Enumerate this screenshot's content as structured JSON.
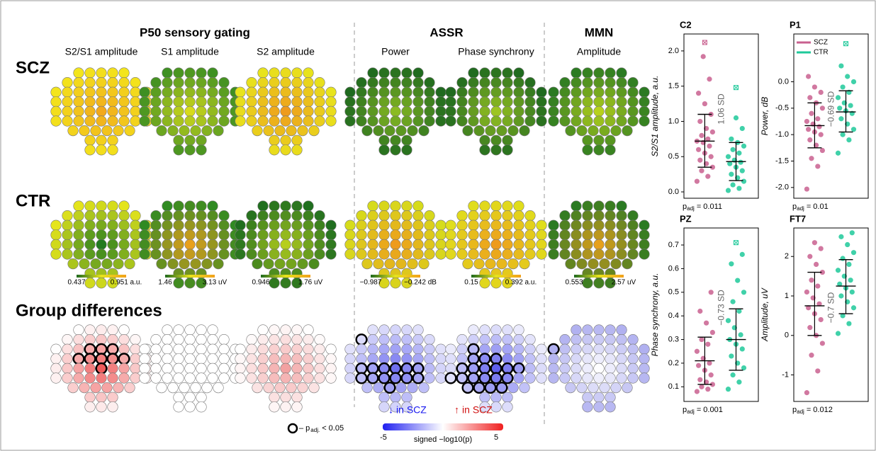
{
  "figure": {
    "sections": [
      {
        "title": "P50 sensory gating",
        "maps": [
          {
            "title": "S2/S1 amplitude",
            "scz": {
              "center": "#f2a81c",
              "edge": "#f3e51c"
            },
            "ctr": {
              "center": "#1f7a1f",
              "edge": "#e6e51c"
            },
            "diff": {
              "center": "#ee5a5a",
              "edge": "#ffffff",
              "significant": [
                15,
                16,
                17,
                23,
                24,
                25,
                26,
                27,
                34
              ]
            },
            "colorbar": [
              "0.437",
              "0.951 a.u."
            ]
          },
          {
            "title": "S1 amplitude",
            "scz": {
              "center": "#d8dc1c",
              "edge": "#3d8f22"
            },
            "ctr": {
              "center": "#eaa01c",
              "edge": "#2f8a22"
            },
            "diff": {
              "center": "#ffffff",
              "edge": "#ffffff",
              "significant": []
            },
            "colorbar": [
              "1.46",
              "3.13 uV"
            ]
          },
          {
            "title": "S2 amplitude",
            "scz": {
              "center": "#ee9a1c",
              "edge": "#e8e41c"
            },
            "ctr": {
              "center": "#b7cf1c",
              "edge": "#1f6e1f"
            },
            "diff": {
              "center": "#f2a0a0",
              "edge": "#ffffff",
              "significant": []
            },
            "colorbar": [
              "0.946",
              "1.76 uV"
            ]
          }
        ]
      },
      {
        "title": "ASSR",
        "maps": [
          {
            "title": "Power",
            "scz": {
              "center": "#8cbc22",
              "edge": "#1f6a1f"
            },
            "ctr": {
              "center": "#ee9a1c",
              "edge": "#d6dc1c"
            },
            "diff": {
              "center": "#6e6ef0",
              "edge": "#e2e2fb",
              "significant": [
                5,
                31,
                32,
                33,
                34,
                35,
                36,
                40,
                41,
                42,
                43,
                44,
                45,
                50
              ]
            },
            "colorbar": [
              "−0.987",
              "−0.242 dB"
            ]
          },
          {
            "title": "Phase synchrony",
            "scz": {
              "center": "#9ec622",
              "edge": "#1f6a1f"
            },
            "ctr": {
              "center": "#ee9a1c",
              "edge": "#e0de1c"
            },
            "diff": {
              "center": "#5e5eee",
              "edge": "#ececfc",
              "significant": [
                14,
                23,
                24,
                25,
                31,
                32,
                33,
                34,
                35,
                36,
                39,
                40,
                41,
                42,
                43,
                44,
                48,
                49,
                50,
                51
              ]
            },
            "colorbar": [
              "0.15",
              "0.392 a.u."
            ]
          },
          {
            "title": "Amplitude",
            "scz": {
              "center": "#b8d21c",
              "edge": "#2a7a22"
            },
            "ctr": {
              "center": "#e8a01c",
              "edge": "#2a7a22"
            },
            "diff": {
              "center": "#ffffff",
              "edge": "#b0b0f0",
              "significant": [
                12
              ]
            },
            "colorbar": [
              "0.553",
              "2.57 uV"
            ]
          }
        ]
      }
    ],
    "mmn_title": "MMN",
    "rows": [
      "SCZ",
      "CTR",
      "Group differences"
    ],
    "significance_legend": {
      "text": "– p",
      "sub": "adj.",
      "tail": "< 0.05"
    },
    "diff_colorbar": {
      "down": "↓ in SCZ",
      "up": "↑ in SCZ",
      "min": "-5",
      "label": "signed −log10(p)",
      "max": "5"
    },
    "groups": [
      {
        "name": "SCZ",
        "color": "#c9608f"
      },
      {
        "name": "CTR",
        "color": "#1fc99a"
      }
    ],
    "panels": [
      {
        "title": "C2",
        "ylabel": "S2/S1 amplitude, a.u.",
        "sd_text": "1.06 SD",
        "p": "p",
        "p_sub": "adj",
        "p_value": "= 0.011",
        "ylim": [
          -0.05,
          2.2
        ],
        "yticks": [
          {
            "value": 0,
            "label": "0.0"
          },
          0.5,
          {
            "value": 1,
            "label": "1.0"
          },
          1.5,
          {
            "value": 2,
            "label": "2.0"
          }
        ],
        "series": [
          {
            "values": [
              0.15,
              0.22,
              0.3,
              0.35,
              0.4,
              0.45,
              0.5,
              0.55,
              0.6,
              0.65,
              0.7,
              0.72,
              0.75,
              0.8,
              0.85,
              0.9,
              1.0,
              1.1,
              1.25,
              1.4,
              1.6,
              1.92
            ],
            "mean": 0.72,
            "sd_low": 0.35,
            "sd_high": 1.1,
            "outlier": 2.12
          },
          {
            "values": [
              0.02,
              0.05,
              0.1,
              0.15,
              0.2,
              0.25,
              0.3,
              0.35,
              0.4,
              0.42,
              0.45,
              0.5,
              0.55,
              0.6,
              0.65,
              0.7,
              0.75,
              0.9,
              1.05
            ],
            "mean": 0.43,
            "sd_low": 0.16,
            "sd_high": 0.7,
            "outlier": 1.48
          }
        ]
      },
      {
        "title": "P1",
        "ylabel": "Power, dB",
        "sd_text": "−0.69 SD",
        "p": "p",
        "p_sub": "adj",
        "p_value": "= 0.01",
        "legend": true,
        "ylim": [
          -2.15,
          0.85
        ],
        "yticks": [
          {
            "value": 0,
            "label": "0.0"
          },
          -0.5,
          {
            "value": -1,
            "label": "-1.0"
          },
          -1.5,
          {
            "value": -2,
            "label": "-2.0"
          }
        ],
        "series": [
          {
            "values": [
              -2.03,
              -1.6,
              -1.45,
              -1.3,
              -1.2,
              -1.1,
              -1.0,
              -0.95,
              -0.9,
              -0.85,
              -0.8,
              -0.75,
              -0.7,
              -0.6,
              -0.5,
              -0.4,
              -0.3,
              -0.2,
              -0.1,
              0.1
            ],
            "mean": -0.83,
            "sd_low": -1.25,
            "sd_high": -0.4,
            "outlier": null
          },
          {
            "values": [
              -1.35,
              -1.1,
              -1.0,
              -0.9,
              -0.8,
              -0.7,
              -0.6,
              -0.55,
              -0.5,
              -0.45,
              -0.4,
              -0.3,
              -0.2,
              -0.1,
              0.0,
              0.1,
              0.3
            ],
            "mean": -0.57,
            "sd_low": -0.95,
            "sd_high": -0.17,
            "outlier": 0.72
          }
        ]
      },
      {
        "title": "PZ",
        "ylabel": "Phase synchrony, a.u.",
        "sd_text": "−0.73 SD",
        "p": "p",
        "p_sub": "adj",
        "p_value": "= 0.001",
        "ylim": [
          0.05,
          0.76
        ],
        "yticks": [
          0.1,
          0.2,
          0.3,
          0.4,
          0.5,
          0.6,
          0.7
        ],
        "series": [
          {
            "values": [
              0.08,
              0.09,
              0.1,
              0.11,
              0.12,
              0.13,
              0.15,
              0.17,
              0.19,
              0.2,
              0.22,
              0.25,
              0.28,
              0.3,
              0.33,
              0.37,
              0.42,
              0.5
            ],
            "mean": 0.21,
            "sd_low": 0.11,
            "sd_high": 0.31,
            "outlier": null
          },
          {
            "values": [
              0.09,
              0.12,
              0.15,
              0.18,
              0.2,
              0.23,
              0.26,
              0.28,
              0.3,
              0.32,
              0.35,
              0.38,
              0.42,
              0.46,
              0.5,
              0.55,
              0.62,
              0.66
            ],
            "mean": 0.3,
            "sd_low": 0.17,
            "sd_high": 0.43,
            "outlier": 0.71
          }
        ]
      },
      {
        "title": "FT7",
        "ylabel": "Amplitude, uV",
        "sd_text": "−0.7 SD",
        "p": "p",
        "p_sub": "adj",
        "p_value": "= 0.012",
        "ylim": [
          -1.6,
          2.65
        ],
        "yticks": [
          -1,
          0,
          1,
          2
        ],
        "series": [
          {
            "values": [
              -1.45,
              -0.9,
              -0.5,
              -0.2,
              0,
              0.2,
              0.4,
              0.55,
              0.7,
              0.8,
              0.95,
              1.1,
              1.25,
              1.4,
              1.6,
              1.8,
              2.0,
              2.2,
              2.35
            ],
            "mean": 0.75,
            "sd_low": 0.0,
            "sd_high": 1.6,
            "outlier": null
          },
          {
            "values": [
              0.05,
              0.3,
              0.5,
              0.7,
              0.85,
              1.0,
              1.1,
              1.2,
              1.3,
              1.4,
              1.5,
              1.65,
              1.8,
              1.95,
              2.1,
              2.3,
              2.5,
              2.6
            ],
            "mean": 1.25,
            "sd_low": 0.55,
            "sd_high": 1.92,
            "outlier": null
          }
        ]
      }
    ]
  }
}
